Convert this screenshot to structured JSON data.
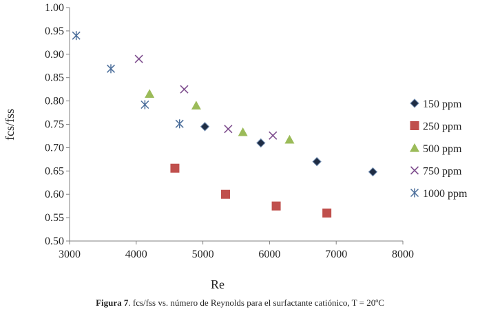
{
  "chart_data": {
    "type": "scatter",
    "title": "",
    "xlabel": "Re",
    "ylabel": "fcs/fss",
    "xlim": [
      3000,
      8000
    ],
    "ylim": [
      0.5,
      1.0
    ],
    "xticks": [
      "3000",
      "4000",
      "5000",
      "6000",
      "7000",
      "8000"
    ],
    "yticks": [
      "0.50",
      "0.55",
      "0.60",
      "0.65",
      "0.70",
      "0.75",
      "0.80",
      "0.85",
      "0.90",
      "0.95",
      "1.00"
    ],
    "grid": false,
    "legend_position": "right",
    "series": [
      {
        "name": "150 ppm",
        "marker": "diamond",
        "color": "#1f2d44",
        "points": [
          [
            5030,
            0.745
          ],
          [
            5870,
            0.71
          ],
          [
            6710,
            0.67
          ],
          [
            7550,
            0.648
          ]
        ]
      },
      {
        "name": "250 ppm",
        "marker": "square",
        "color": "#c0504d",
        "points": [
          [
            4580,
            0.656
          ],
          [
            5340,
            0.6
          ],
          [
            6100,
            0.575
          ],
          [
            6860,
            0.56
          ]
        ]
      },
      {
        "name": "500 ppm",
        "marker": "triangle",
        "color": "#9bbb59",
        "points": [
          [
            4200,
            0.815
          ],
          [
            4900,
            0.79
          ],
          [
            5600,
            0.733
          ],
          [
            6300,
            0.717
          ]
        ]
      },
      {
        "name": "750 ppm",
        "marker": "x",
        "color": "#7f4f8f",
        "points": [
          [
            4040,
            0.89
          ],
          [
            4720,
            0.825
          ],
          [
            5380,
            0.74
          ],
          [
            6050,
            0.726
          ]
        ]
      },
      {
        "name": "1000 ppm",
        "marker": "star",
        "color": "#4a6d9a",
        "points": [
          [
            3100,
            0.94
          ],
          [
            3620,
            0.869
          ],
          [
            4130,
            0.792
          ],
          [
            4650,
            0.751
          ]
        ]
      }
    ]
  },
  "caption": {
    "label": "Figura 7",
    "text": ". fcs/fss vs. número de Reynolds para el surfactante catiónico, T = 20ºC"
  }
}
